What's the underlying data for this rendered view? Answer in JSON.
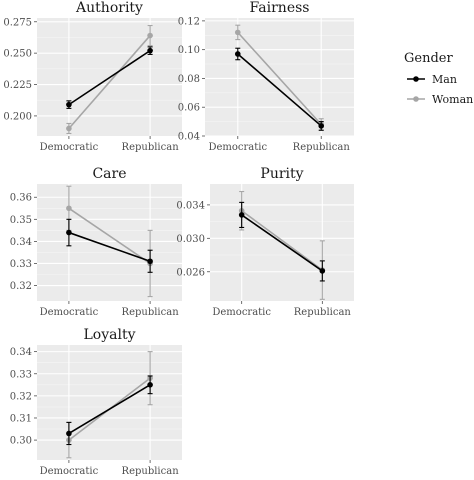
{
  "legend": {
    "title": "Gender",
    "items": [
      {
        "label": "Man",
        "color": "#000000"
      },
      {
        "label": "Woman",
        "color": "#a6a6a6"
      }
    ]
  },
  "chart_data": [
    {
      "type": "line",
      "title": "Authority",
      "categories": [
        "Democratic",
        "Republican"
      ],
      "ylim": [
        0.184,
        0.278
      ],
      "yticks": [
        0.2,
        0.225,
        0.25,
        0.275
      ],
      "ytick_labels": [
        "0.200",
        "0.225",
        "0.250",
        "0.275"
      ],
      "series": [
        {
          "name": "Man",
          "color": "#000000",
          "values": [
            0.209,
            0.252
          ],
          "err": [
            0.003,
            0.003
          ]
        },
        {
          "name": "Woman",
          "color": "#a6a6a6",
          "values": [
            0.19,
            0.264
          ],
          "err": [
            0.004,
            0.008
          ]
        }
      ]
    },
    {
      "type": "line",
      "title": "Fairness",
      "categories": [
        "Democratic",
        "Republican"
      ],
      "ylim": [
        0.04,
        0.122
      ],
      "yticks": [
        0.04,
        0.06,
        0.08,
        0.1,
        0.12
      ],
      "ytick_labels": [
        "0.04",
        "0.06",
        "0.08",
        "0.10",
        "0.12"
      ],
      "series": [
        {
          "name": "Man",
          "color": "#000000",
          "values": [
            0.097,
            0.047
          ],
          "err": [
            0.004,
            0.003
          ]
        },
        {
          "name": "Woman",
          "color": "#a6a6a6",
          "values": [
            0.112,
            0.048
          ],
          "err": [
            0.005,
            0.004
          ]
        }
      ]
    },
    {
      "type": "line",
      "title": "Care",
      "categories": [
        "Democratic",
        "Republican"
      ],
      "ylim": [
        0.313,
        0.366
      ],
      "yticks": [
        0.32,
        0.33,
        0.34,
        0.35,
        0.36
      ],
      "ytick_labels": [
        "0.32",
        "0.33",
        "0.34",
        "0.35",
        "0.36"
      ],
      "series": [
        {
          "name": "Man",
          "color": "#000000",
          "values": [
            0.344,
            0.331
          ],
          "err": [
            0.006,
            0.005
          ]
        },
        {
          "name": "Woman",
          "color": "#a6a6a6",
          "values": [
            0.355,
            0.33
          ],
          "err": [
            0.01,
            0.015
          ]
        }
      ]
    },
    {
      "type": "line",
      "title": "Purity",
      "categories": [
        "Democratic",
        "Republican"
      ],
      "ylim": [
        0.0225,
        0.0365
      ],
      "yticks": [
        0.026,
        0.03,
        0.034
      ],
      "ytick_labels": [
        "0.026",
        "0.030",
        "0.034"
      ],
      "series": [
        {
          "name": "Man",
          "color": "#000000",
          "values": [
            0.0328,
            0.0261
          ],
          "err": [
            0.0015,
            0.0012
          ]
        },
        {
          "name": "Woman",
          "color": "#a6a6a6",
          "values": [
            0.0333,
            0.0262
          ],
          "err": [
            0.0023,
            0.0035
          ]
        }
      ]
    },
    {
      "type": "line",
      "title": "Loyalty",
      "categories": [
        "Democratic",
        "Republican"
      ],
      "ylim": [
        0.291,
        0.343
      ],
      "yticks": [
        0.3,
        0.31,
        0.32,
        0.33,
        0.34
      ],
      "ytick_labels": [
        "0.30",
        "0.31",
        "0.32",
        "0.33",
        "0.34"
      ],
      "series": [
        {
          "name": "Man",
          "color": "#000000",
          "values": [
            0.303,
            0.325
          ],
          "err": [
            0.005,
            0.004
          ]
        },
        {
          "name": "Woman",
          "color": "#a6a6a6",
          "values": [
            0.3,
            0.328
          ],
          "err": [
            0.008,
            0.012
          ]
        }
      ]
    }
  ]
}
